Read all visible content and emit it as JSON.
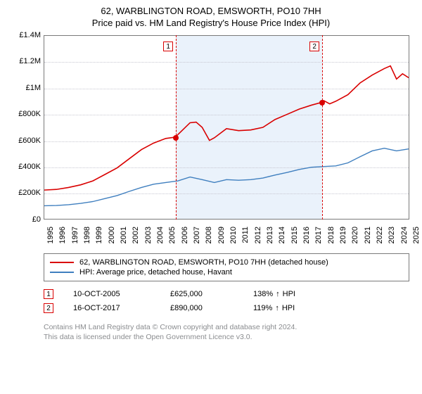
{
  "header": {
    "title": "62, WARBLINGTON ROAD, EMSWORTH, PO10 7HH",
    "subtitle": "Price paid vs. HM Land Registry's House Price Index (HPI)"
  },
  "chart": {
    "type": "line",
    "background_color": "#ffffff",
    "plot_border_color": "#7a7a7a",
    "grid_color": "#c7c7d1",
    "xaxis": {
      "years": [
        1995,
        1996,
        1997,
        1998,
        1999,
        2000,
        2001,
        2002,
        2003,
        2004,
        2005,
        2006,
        2007,
        2008,
        2009,
        2010,
        2011,
        2012,
        2013,
        2014,
        2015,
        2016,
        2017,
        2018,
        2019,
        2020,
        2021,
        2022,
        2023,
        2024,
        2025
      ],
      "label_fontsize": 11
    },
    "yaxis": {
      "ticks": [
        0,
        200000,
        400000,
        600000,
        800000,
        1000000,
        1200000,
        1400000
      ],
      "tick_labels": [
        "£0",
        "£200K",
        "£400K",
        "£600K",
        "£800K",
        "£1M",
        "£1.2M",
        "£1.4M"
      ],
      "min": 0,
      "max": 1400000,
      "label_fontsize": 11
    },
    "highlight_band": {
      "from_year": 2005.8,
      "to_year": 2017.8,
      "color": "#eaf2fb"
    },
    "series": [
      {
        "name": "62, WARBLINGTON ROAD, EMSWORTH, PO10 7HH (detached house)",
        "color": "#d90000",
        "line_width": 1.6,
        "data": [
          [
            1995,
            220000
          ],
          [
            1996,
            225000
          ],
          [
            1997,
            240000
          ],
          [
            1998,
            260000
          ],
          [
            1999,
            290000
          ],
          [
            2000,
            340000
          ],
          [
            2001,
            390000
          ],
          [
            2002,
            460000
          ],
          [
            2003,
            530000
          ],
          [
            2004,
            580000
          ],
          [
            2005,
            615000
          ],
          [
            2005.8,
            625000
          ],
          [
            2006,
            645000
          ],
          [
            2007,
            735000
          ],
          [
            2007.5,
            740000
          ],
          [
            2008,
            700000
          ],
          [
            2008.6,
            600000
          ],
          [
            2009,
            620000
          ],
          [
            2010,
            690000
          ],
          [
            2011,
            675000
          ],
          [
            2012,
            680000
          ],
          [
            2013,
            700000
          ],
          [
            2014,
            760000
          ],
          [
            2015,
            800000
          ],
          [
            2016,
            840000
          ],
          [
            2017,
            870000
          ],
          [
            2017.8,
            890000
          ],
          [
            2018,
            905000
          ],
          [
            2018.5,
            880000
          ],
          [
            2019,
            900000
          ],
          [
            2020,
            950000
          ],
          [
            2021,
            1040000
          ],
          [
            2022,
            1100000
          ],
          [
            2023,
            1150000
          ],
          [
            2023.5,
            1170000
          ],
          [
            2024,
            1070000
          ],
          [
            2024.5,
            1110000
          ],
          [
            2025,
            1080000
          ]
        ]
      },
      {
        "name": "HPI: Average price, detached house, Havant",
        "color": "#3f7fbf",
        "line_width": 1.4,
        "data": [
          [
            1995,
            100000
          ],
          [
            1996,
            102000
          ],
          [
            1997,
            108000
          ],
          [
            1998,
            118000
          ],
          [
            1999,
            132000
          ],
          [
            2000,
            155000
          ],
          [
            2001,
            178000
          ],
          [
            2002,
            210000
          ],
          [
            2003,
            240000
          ],
          [
            2004,
            265000
          ],
          [
            2005,
            278000
          ],
          [
            2006,
            290000
          ],
          [
            2007,
            320000
          ],
          [
            2008,
            300000
          ],
          [
            2009,
            278000
          ],
          [
            2010,
            300000
          ],
          [
            2011,
            295000
          ],
          [
            2012,
            300000
          ],
          [
            2013,
            312000
          ],
          [
            2014,
            335000
          ],
          [
            2015,
            355000
          ],
          [
            2016,
            378000
          ],
          [
            2017,
            395000
          ],
          [
            2018,
            400000
          ],
          [
            2019,
            405000
          ],
          [
            2020,
            428000
          ],
          [
            2021,
            475000
          ],
          [
            2022,
            520000
          ],
          [
            2023,
            540000
          ],
          [
            2024,
            520000
          ],
          [
            2025,
            535000
          ]
        ]
      }
    ],
    "markers": [
      {
        "id": "1",
        "year": 2005.8,
        "price": 625000
      },
      {
        "id": "2",
        "year": 2017.8,
        "price": 890000
      }
    ]
  },
  "legend": {
    "rows": [
      {
        "color": "#d90000",
        "label": "62, WARBLINGTON ROAD, EMSWORTH, PO10 7HH (detached house)"
      },
      {
        "color": "#3f7fbf",
        "label": "HPI: Average price, detached house, Havant"
      }
    ]
  },
  "events": [
    {
      "id": "1",
      "date": "10-OCT-2005",
      "price": "£625,000",
      "pct": "138%",
      "arrow": "↑",
      "suffix": "HPI"
    },
    {
      "id": "2",
      "date": "16-OCT-2017",
      "price": "£890,000",
      "pct": "119%",
      "arrow": "↑",
      "suffix": "HPI"
    }
  ],
  "footer": {
    "line1": "Contains HM Land Registry data © Crown copyright and database right 2024.",
    "line2": "This data is licensed under the Open Government Licence v3.0."
  }
}
